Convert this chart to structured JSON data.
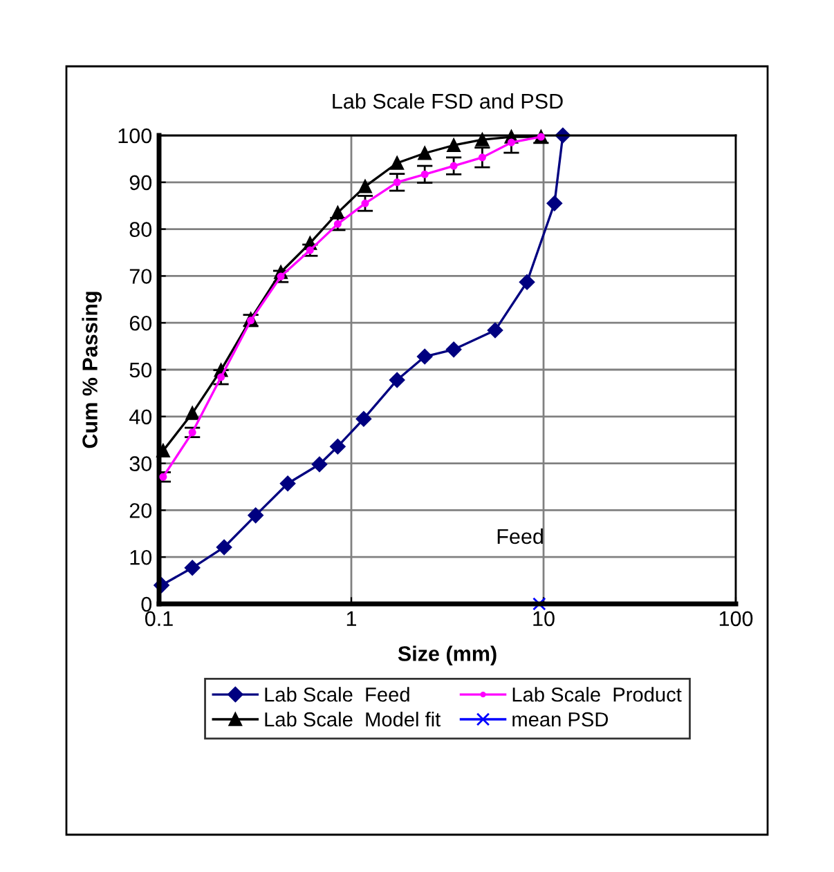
{
  "chart_data": {
    "type": "line",
    "title": "Lab Scale FSD and PSD",
    "xlabel": "Size (mm)",
    "ylabel": "Cum % Passing",
    "log": "x",
    "xlim": [
      0.1,
      100
    ],
    "xticks": [
      0.1,
      1,
      10,
      100
    ],
    "ylim": [
      0,
      100
    ],
    "yticks": [
      0,
      10,
      20,
      30,
      40,
      50,
      60,
      70,
      80,
      90,
      100
    ],
    "grid": true,
    "legend": "bottom",
    "annotations": [
      "Feed"
    ],
    "series": [
      {
        "name": "Lab Scale  Feed",
        "color": "#000080",
        "marker": "diamond",
        "x": [
          0.103,
          0.149,
          0.218,
          0.318,
          0.467,
          0.683,
          0.85,
          1.16,
          1.73,
          2.41,
          3.41,
          5.6,
          8.2,
          11.4,
          12.6
        ],
        "values": [
          4,
          7.7,
          12.1,
          18.9,
          25.7,
          29.8,
          33.6,
          39.5,
          47.8,
          52.8,
          54.3,
          58.4,
          68.7,
          85.5,
          100
        ]
      },
      {
        "name": "Lab Scale  Product",
        "color": "#ff00ff",
        "marker": "circle",
        "x": [
          0.105,
          0.149,
          0.21,
          0.3,
          0.43,
          0.61,
          0.85,
          1.18,
          1.73,
          2.41,
          3.41,
          4.8,
          6.8,
          9.7
        ],
        "values": [
          27.1,
          36.6,
          48.4,
          60.5,
          69.9,
          75.5,
          81.1,
          85.5,
          90.0,
          91.7,
          93.5,
          95.3,
          98.5,
          99.7
        ],
        "errors": [
          1,
          1,
          1.5,
          1.2,
          1.2,
          1.2,
          1.3,
          1.6,
          1.8,
          1.8,
          1.8,
          2.1,
          2.2,
          1.3
        ]
      },
      {
        "name": "Lab Scale  Model fit",
        "color": "#000000",
        "marker": "triangle",
        "x": [
          0.105,
          0.149,
          0.21,
          0.3,
          0.43,
          0.61,
          0.85,
          1.18,
          1.73,
          2.41,
          3.41,
          4.8,
          6.8,
          9.7
        ],
        "values": [
          32.7,
          40.7,
          49.9,
          60.8,
          70.8,
          77,
          83.5,
          89.1,
          94.1,
          96.2,
          97.9,
          99.1,
          99.7,
          99.7
        ]
      },
      {
        "name": "mean PSD",
        "color": "#0000ff",
        "marker": "cross",
        "type": "scatter",
        "x": [
          9.5
        ],
        "values": [
          0
        ]
      }
    ]
  }
}
